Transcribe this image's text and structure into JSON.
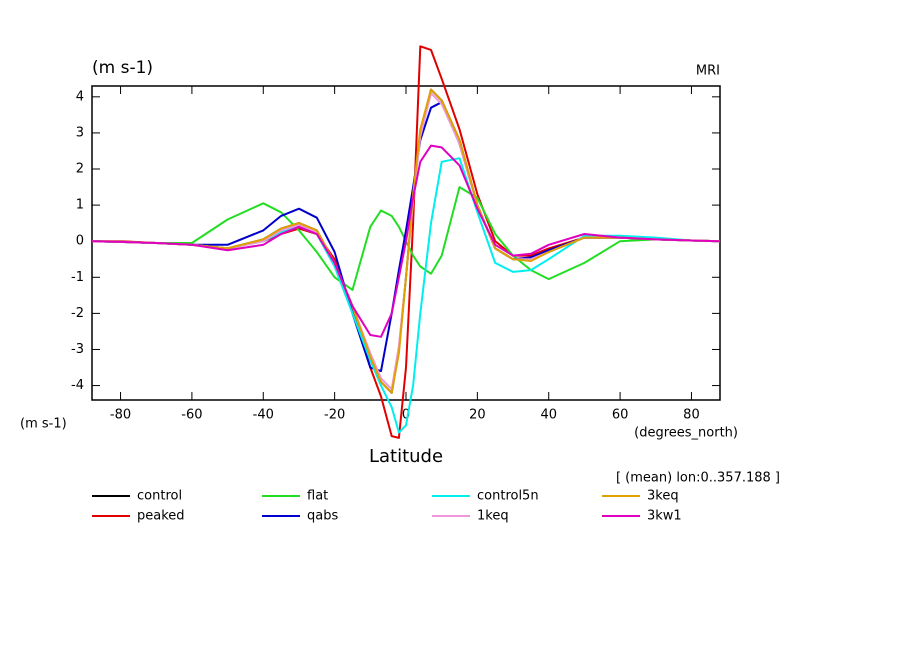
{
  "chart_data": {
    "type": "line",
    "title": "(m s-1)",
    "subtitle": "MRI",
    "y_axis_label": "(m s-1)",
    "x_axis_unit": "(degrees_north)",
    "x_axis_label": "Latitude",
    "annotation": "[ (mean) lon:0..357.188 ]",
    "x": [
      -88,
      -80,
      -70,
      -60,
      -50,
      -40,
      -35,
      -30,
      -25,
      -20,
      -15,
      -10,
      -7,
      -4,
      -2,
      0,
      2,
      4,
      7,
      10,
      15,
      20,
      25,
      30,
      35,
      40,
      50,
      60,
      70,
      80,
      88
    ],
    "series": [
      {
        "name": "control",
        "color": "#000000",
        "values": [
          0,
          -0.02,
          -0.05,
          -0.1,
          -0.2,
          0.05,
          0.35,
          0.5,
          0.3,
          -0.6,
          -1.8,
          -3.2,
          -3.9,
          -4.2,
          -3.0,
          -1.0,
          1.2,
          3.0,
          4.2,
          3.9,
          2.8,
          1.0,
          -0.2,
          -0.5,
          -0.5,
          -0.3,
          0.1,
          0.1,
          0.05,
          0.02,
          0
        ]
      },
      {
        "name": "peaked",
        "color": "#e00000",
        "values": [
          0,
          0,
          -0.05,
          -0.1,
          -0.2,
          0,
          0.2,
          0.35,
          0.2,
          -0.5,
          -1.9,
          -3.5,
          -4.3,
          -5.4,
          -5.45,
          -3.5,
          0.5,
          5.4,
          5.3,
          4.5,
          3.1,
          1.3,
          0,
          -0.4,
          -0.4,
          -0.2,
          0.1,
          0.1,
          0.05,
          0.02,
          0
        ]
      },
      {
        "name": "flat",
        "color": "#22dd22",
        "values": [
          0,
          -0.02,
          -0.05,
          -0.05,
          0.6,
          1.05,
          0.8,
          0.3,
          -0.3,
          -1.0,
          -1.35,
          0.4,
          0.85,
          0.7,
          0.4,
          0,
          -0.4,
          -0.7,
          -0.9,
          -0.4,
          1.5,
          1.2,
          0.2,
          -0.4,
          -0.8,
          -1.05,
          -0.6,
          0,
          0.05,
          0.02,
          0
        ]
      },
      {
        "name": "qabs",
        "color": "#0000cc",
        "values": [
          0,
          -0.02,
          -0.05,
          -0.1,
          -0.1,
          0.3,
          0.7,
          0.9,
          0.65,
          -0.3,
          -2.0,
          -3.5,
          -3.6,
          -2.0,
          -0.8,
          0.3,
          1.5,
          2.8,
          3.7,
          3.85,
          2.7,
          1.0,
          -0.2,
          -0.5,
          -0.45,
          -0.25,
          0.1,
          0.1,
          0.05,
          0.02,
          0
        ]
      },
      {
        "name": "control5n",
        "color": "#00eeee",
        "values": [
          0,
          -0.02,
          -0.05,
          -0.1,
          -0.2,
          0,
          0.25,
          0.4,
          0.2,
          -0.7,
          -2.0,
          -3.3,
          -4.0,
          -4.6,
          -5.3,
          -5.1,
          -4.0,
          -2.0,
          0.5,
          2.2,
          2.3,
          0.8,
          -0.6,
          -0.85,
          -0.8,
          -0.5,
          0.15,
          0.15,
          0.1,
          0.02,
          0
        ]
      },
      {
        "name": "1keq",
        "color": "#ee99dd",
        "values": [
          0,
          -0.02,
          -0.05,
          -0.1,
          -0.2,
          0,
          0.3,
          0.45,
          0.25,
          -0.6,
          -1.8,
          -3.1,
          -3.8,
          -4.1,
          -2.9,
          -1.0,
          1.1,
          2.9,
          4.1,
          3.8,
          2.7,
          1.0,
          -0.2,
          -0.5,
          -0.5,
          -0.3,
          0.1,
          0.1,
          0.05,
          0.02,
          0
        ]
      },
      {
        "name": "3keq",
        "color": "#e0a000",
        "values": [
          0,
          -0.02,
          -0.05,
          -0.1,
          -0.2,
          0.05,
          0.35,
          0.5,
          0.3,
          -0.6,
          -1.8,
          -3.2,
          -3.9,
          -4.2,
          -3.1,
          -1.0,
          1.3,
          3.1,
          4.2,
          3.9,
          2.8,
          1.0,
          -0.2,
          -0.5,
          -0.55,
          -0.3,
          0.1,
          0.1,
          0.05,
          0.02,
          0
        ]
      },
      {
        "name": "3kw1",
        "color": "#e000c0",
        "values": [
          0,
          -0.02,
          -0.05,
          -0.1,
          -0.25,
          -0.1,
          0.2,
          0.4,
          0.2,
          -0.6,
          -1.8,
          -2.6,
          -2.65,
          -2.0,
          -1.0,
          0,
          1.2,
          2.2,
          2.65,
          2.6,
          2.1,
          0.9,
          -0.1,
          -0.4,
          -0.35,
          -0.1,
          0.2,
          0.1,
          0.05,
          0.02,
          0
        ]
      }
    ],
    "xlim": [
      -88,
      88
    ],
    "ylim": [
      -4.4,
      4.3
    ],
    "xticks": [
      -80,
      -60,
      -40,
      -20,
      0,
      20,
      40,
      60,
      80
    ],
    "yticks": [
      -4,
      -3,
      -2,
      -1,
      0,
      1,
      2,
      3,
      4
    ]
  }
}
